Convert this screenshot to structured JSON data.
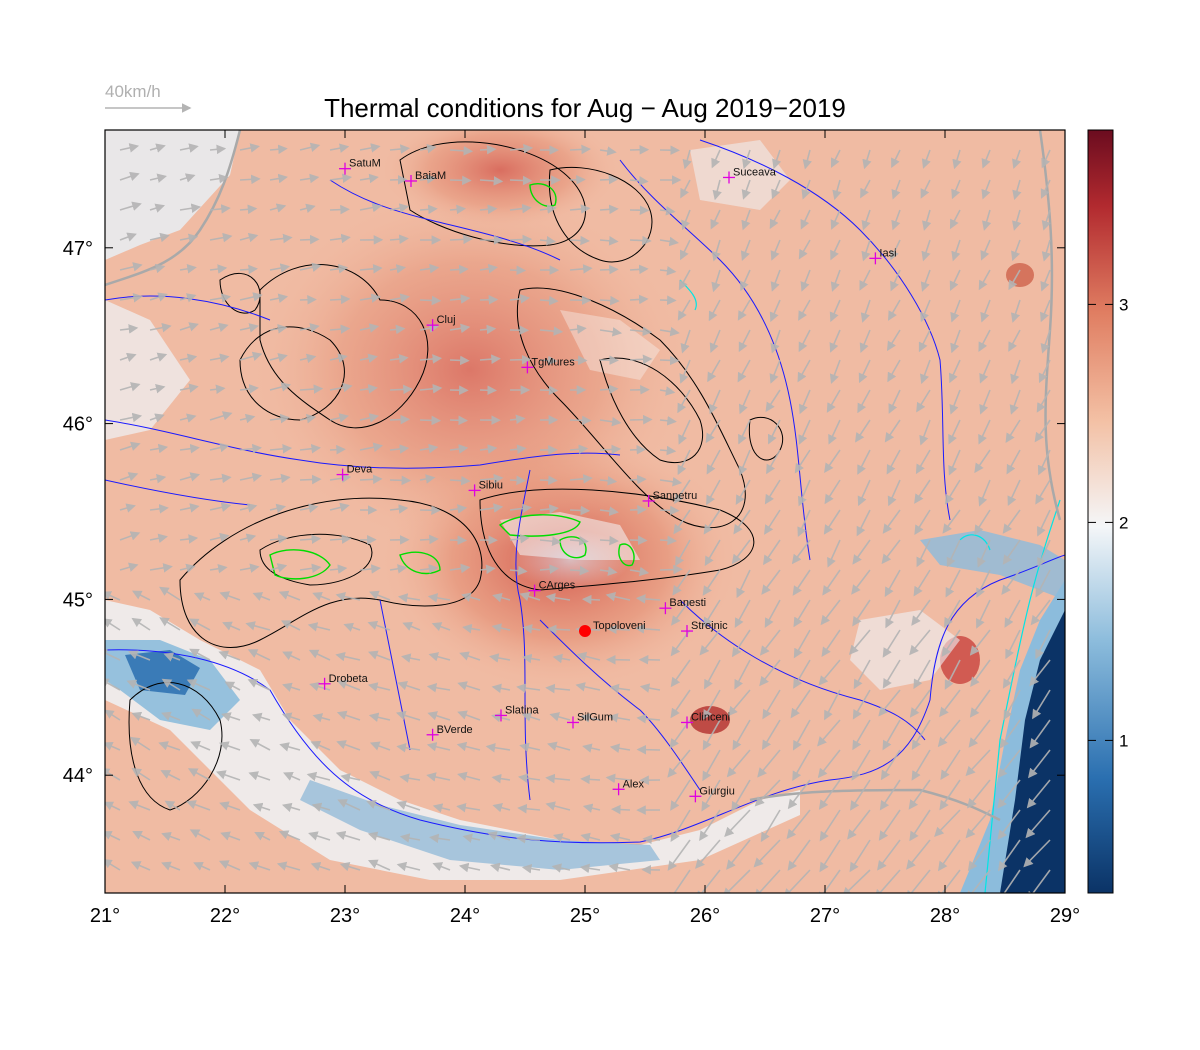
{
  "title": "Thermal conditions for Aug − Aug  2019−2019",
  "wind_reference": {
    "label": "40km/h",
    "speed_kmh": 40
  },
  "axes": {
    "x_ticks": [
      "21°",
      "22°",
      "23°",
      "24°",
      "25°",
      "26°",
      "27°",
      "28°",
      "29°"
    ],
    "y_ticks": [
      "44°",
      "45°",
      "46°",
      "47°"
    ]
  },
  "colorbar": {
    "ticks": [
      "1",
      "2",
      "3"
    ],
    "range": [
      0.3,
      3.8
    ],
    "palette": [
      "#0b3366",
      "#2a6fb0",
      "#8cbcdc",
      "#f4f6f8",
      "#f3c0a4",
      "#e07e62",
      "#b22a2f",
      "#6b0c1f"
    ]
  },
  "colors": {
    "rivers": "#1a1aff",
    "borders": "#a9a9a9",
    "contours": "#000000",
    "high_contours": "#00dd00",
    "coast": "#00e5e5",
    "wind_arrows": "#b4b4b4",
    "station_marker": "#e000e0",
    "highlight": "#ff0000"
  },
  "stations": [
    {
      "name": "SatuM",
      "lon": 23.0,
      "lat": 47.45
    },
    {
      "name": "BaiaM",
      "lon": 23.55,
      "lat": 47.38
    },
    {
      "name": "Suceava",
      "lon": 26.2,
      "lat": 47.4
    },
    {
      "name": "Iasi",
      "lon": 27.42,
      "lat": 46.94
    },
    {
      "name": "Cluj",
      "lon": 23.73,
      "lat": 46.56
    },
    {
      "name": "TgMures",
      "lon": 24.52,
      "lat": 46.32
    },
    {
      "name": "Deva",
      "lon": 22.98,
      "lat": 45.71
    },
    {
      "name": "Sibiu",
      "lon": 24.08,
      "lat": 45.62
    },
    {
      "name": "Sanpetru",
      "lon": 25.53,
      "lat": 45.56
    },
    {
      "name": "CArges",
      "lon": 24.58,
      "lat": 45.05
    },
    {
      "name": "Banesti",
      "lon": 25.67,
      "lat": 44.95
    },
    {
      "name": "Strejnic",
      "lon": 25.85,
      "lat": 44.82
    },
    {
      "name": "Drobeta",
      "lon": 22.83,
      "lat": 44.52
    },
    {
      "name": "Slatina",
      "lon": 24.3,
      "lat": 44.34
    },
    {
      "name": "SilGum",
      "lon": 24.9,
      "lat": 44.3
    },
    {
      "name": "Clinceni",
      "lon": 25.85,
      "lat": 44.3
    },
    {
      "name": "BVerde",
      "lon": 23.73,
      "lat": 44.23
    },
    {
      "name": "Alex",
      "lon": 25.28,
      "lat": 43.92
    },
    {
      "name": "Giurgiu",
      "lon": 25.92,
      "lat": 43.88
    }
  ],
  "highlight_station": {
    "name": "Topoloveni",
    "lon": 25.0,
    "lat": 44.82
  }
}
